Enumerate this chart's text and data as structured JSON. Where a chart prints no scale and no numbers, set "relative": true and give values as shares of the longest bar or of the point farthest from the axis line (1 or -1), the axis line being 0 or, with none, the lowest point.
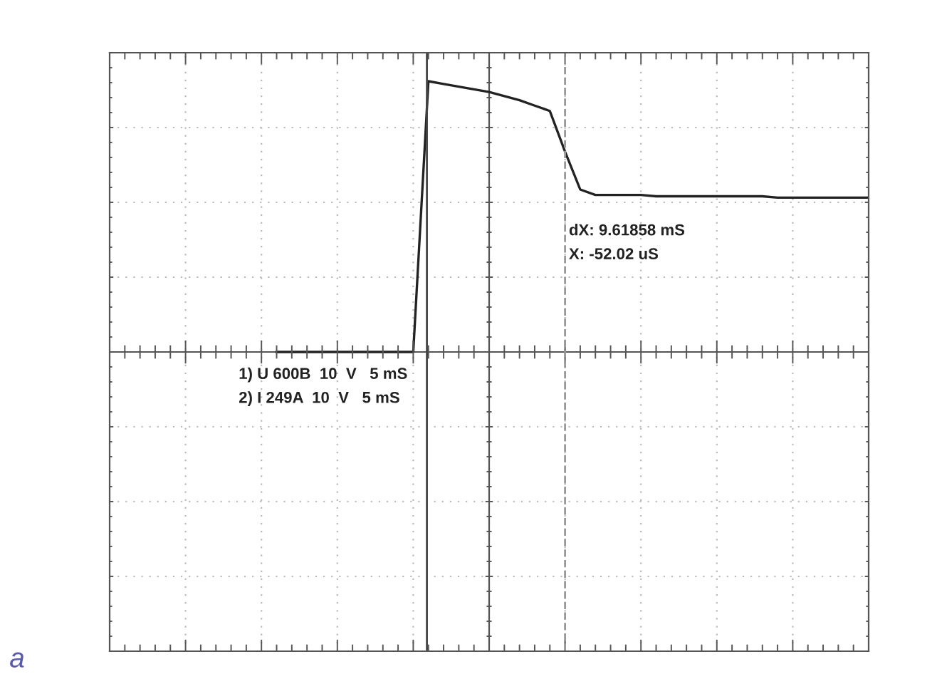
{
  "chart_data": {
    "type": "line",
    "relative": true,
    "categories": [
      null,
      null,
      null,
      null,
      null,
      null,
      null,
      null,
      null,
      null,
      null,
      null,
      null,
      null,
      null,
      null,
      null,
      null,
      null,
      null,
      null,
      null,
      null,
      null,
      null,
      null,
      null,
      null,
      null,
      null,
      null,
      null,
      null,
      null,
      null,
      null,
      null,
      null,
      null,
      null,
      null,
      null,
      null,
      null,
      null,
      null,
      null,
      null,
      null,
      null,
      null
    ],
    "series": [
      {
        "color": "#222222",
        "values": [
          null,
          null,
          null,
          null,
          null,
          null,
          null,
          null,
          null,
          null,
          null,
          0,
          0,
          0,
          0,
          0,
          0,
          0,
          0,
          0,
          0,
          1.0,
          0.99,
          0.98,
          0.97,
          0.96,
          0.945,
          0.93,
          0.91,
          0.89,
          0.74,
          0.6,
          0.58,
          0.58,
          0.58,
          0.58,
          0.575,
          0.575,
          0.575,
          0.575,
          0.575,
          0.575,
          0.575,
          0.575,
          0.57,
          0.57,
          0.57,
          0.57,
          0.57,
          0.57,
          0.57
        ]
      }
    ],
    "annotations": [
      "1) U 600B  10  V   5 mS",
      "2) I 249A  10  V   5 mS",
      "dX: 9.61858 mS",
      "X: -52.02 uS",
      "a"
    ],
    "grid": true,
    "marker": "none",
    "line_style": "solid",
    "legend": false
  }
}
